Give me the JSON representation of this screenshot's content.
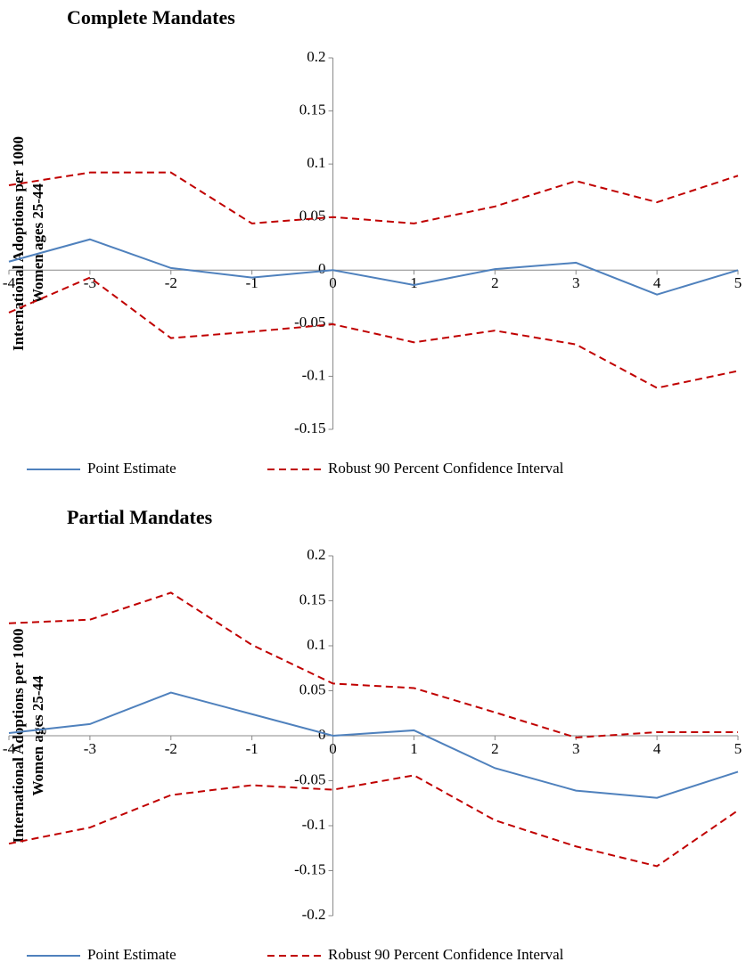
{
  "chart_data": [
    {
      "type": "line",
      "title": "Complete Mandates",
      "ylabel": [
        "International Adoptions per 1000",
        "Women ages 25-44"
      ],
      "x": [
        -4,
        -3,
        -2,
        -1,
        0,
        1,
        2,
        3,
        4,
        5
      ],
      "xlim": [
        -4,
        5
      ],
      "xticks": [
        -4,
        -3,
        -2,
        -1,
        0,
        1,
        2,
        3,
        4,
        5
      ],
      "ylim": [
        -0.15,
        0.2
      ],
      "yticks": [
        -0.15,
        -0.1,
        -0.05,
        0,
        0.05,
        0.1,
        0.15,
        0.2
      ],
      "series": [
        {
          "name": "Point Estimate",
          "color": "#4f81bd",
          "style": "solid",
          "values": [
            0.008,
            0.029,
            0.002,
            -0.007,
            0,
            -0.014,
            0.001,
            0.007,
            -0.023,
            0
          ]
        },
        {
          "name": "Robust 90 Percent Confidence Interval",
          "color": "#c00000",
          "style": "dashed",
          "upper": [
            0.08,
            0.092,
            0.092,
            0.044,
            0.05,
            0.044,
            0.06,
            0.084,
            0.064,
            0.089
          ],
          "lower": [
            -0.04,
            -0.007,
            -0.064,
            -0.058,
            -0.051,
            -0.068,
            -0.057,
            -0.07,
            -0.111,
            -0.095
          ]
        }
      ]
    },
    {
      "type": "line",
      "title": "Partial Mandates",
      "ylabel": [
        "International Adoptions per 1000",
        "Women ages 25-44"
      ],
      "x": [
        -4,
        -3,
        -2,
        -1,
        0,
        1,
        2,
        3,
        4,
        5
      ],
      "xlim": [
        -4,
        5
      ],
      "xticks": [
        -4,
        -3,
        -2,
        -1,
        0,
        1,
        2,
        3,
        4,
        5
      ],
      "ylim": [
        -0.2,
        0.2
      ],
      "yticks": [
        -0.2,
        -0.15,
        -0.1,
        -0.05,
        0,
        0.05,
        0.1,
        0.15,
        0.2
      ],
      "series": [
        {
          "name": "Point Estimate",
          "color": "#4f81bd",
          "style": "solid",
          "values": [
            0.003,
            0.013,
            0.048,
            0.024,
            0,
            0.006,
            -0.036,
            -0.061,
            -0.069,
            -0.04
          ]
        },
        {
          "name": "Robust 90 Percent Confidence Interval",
          "color": "#c00000",
          "style": "dashed",
          "upper": [
            0.125,
            0.129,
            0.159,
            0.101,
            0.058,
            0.053,
            0.026,
            -0.002,
            0.004,
            0.004
          ],
          "lower": [
            -0.12,
            -0.102,
            -0.066,
            -0.055,
            -0.06,
            -0.044,
            -0.094,
            -0.123,
            -0.145,
            -0.083
          ]
        }
      ]
    }
  ]
}
